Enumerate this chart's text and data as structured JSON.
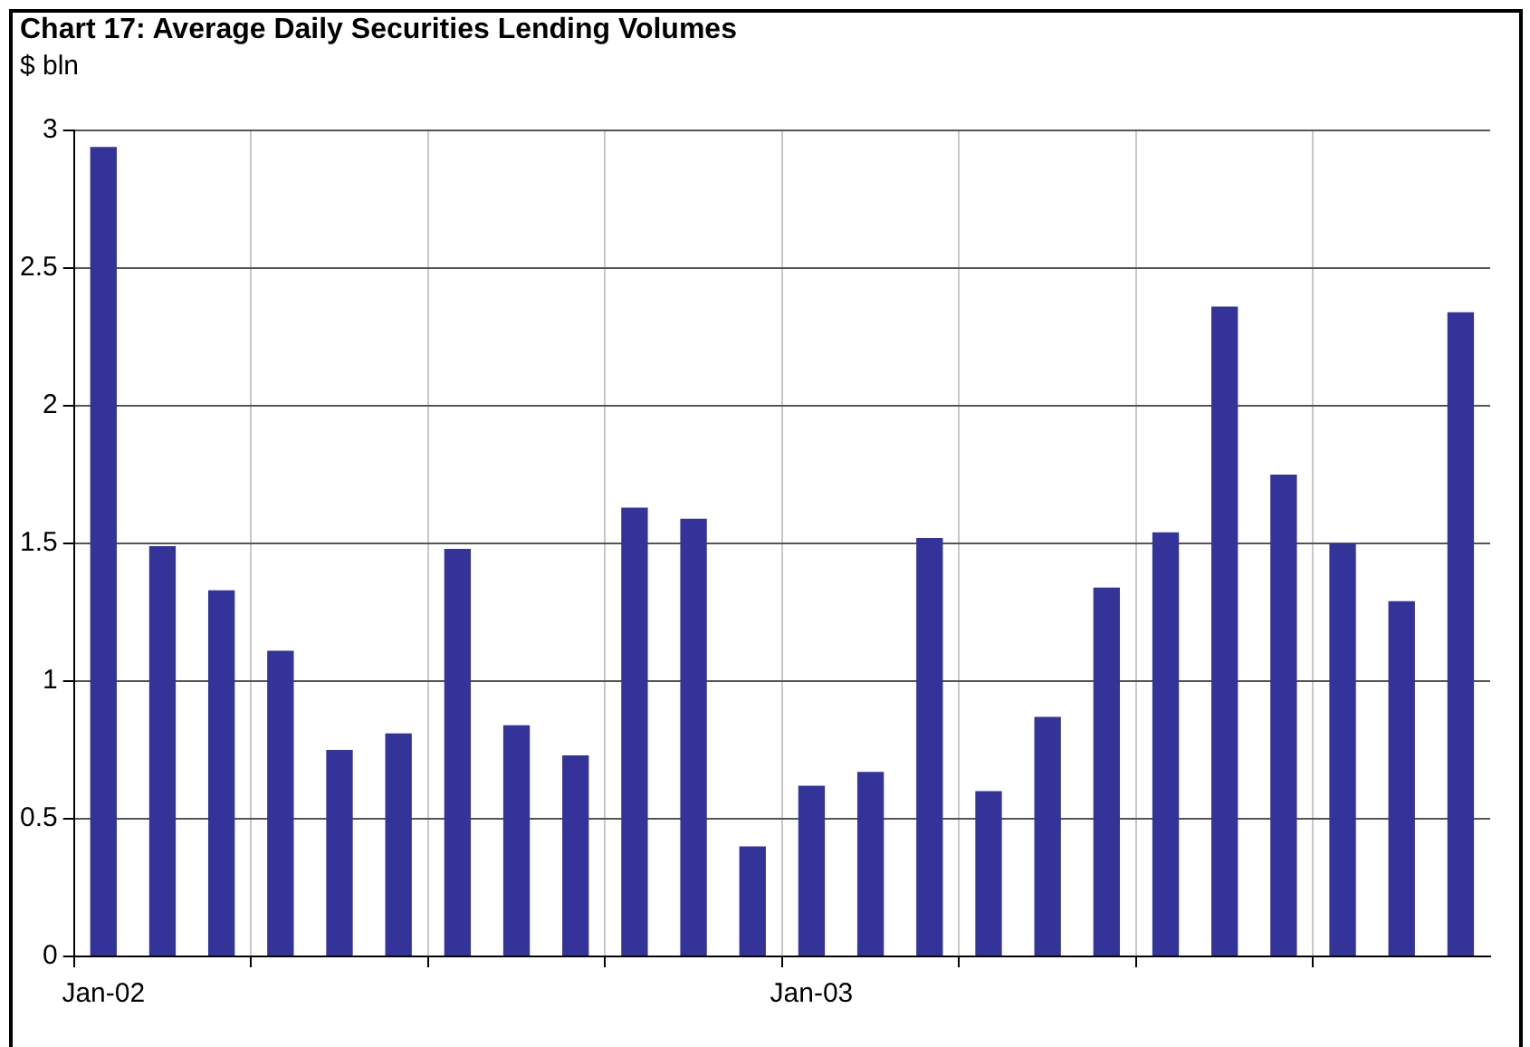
{
  "chart_data": {
    "type": "bar",
    "title": "Chart 17: Average Daily Securities Lending Volumes",
    "ylabel": "$ bln",
    "categories": [
      "Jan-02",
      null,
      null,
      null,
      null,
      null,
      null,
      null,
      null,
      null,
      null,
      null,
      "Jan-03",
      null,
      null,
      null,
      null,
      null,
      null,
      null,
      null,
      null,
      null,
      null
    ],
    "values": [
      2.94,
      1.49,
      1.33,
      1.11,
      0.75,
      0.81,
      1.48,
      0.84,
      0.73,
      1.63,
      1.59,
      0.4,
      0.62,
      0.67,
      1.52,
      0.6,
      0.87,
      1.34,
      1.54,
      2.36,
      1.75,
      1.5,
      1.29,
      2.34
    ],
    "color": "#333399",
    "ylim": [
      0,
      3
    ],
    "yticks": [
      0,
      0.5,
      1,
      1.5,
      2,
      2.5,
      3
    ],
    "grid": true
  }
}
